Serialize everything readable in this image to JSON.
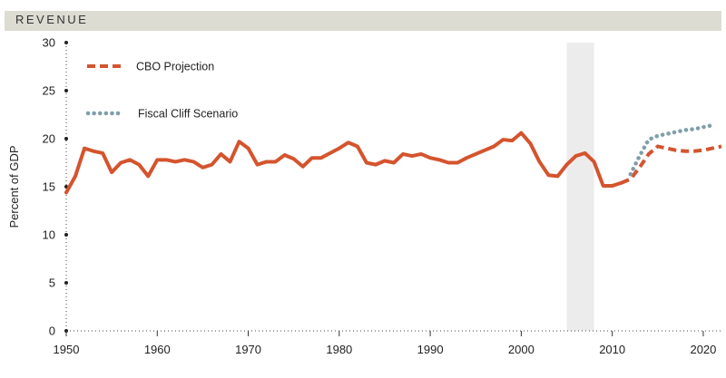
{
  "header": {
    "title": "REVENUE"
  },
  "chart_data": {
    "type": "line",
    "title": "REVENUE",
    "xlabel": "",
    "ylabel": "Percent of GDP",
    "xlim": [
      1950,
      2022
    ],
    "ylim": [
      0,
      30
    ],
    "x_ticks": [
      1950,
      1960,
      1970,
      1980,
      1990,
      2000,
      2010,
      2020
    ],
    "y_ticks": [
      0,
      5,
      10,
      15,
      20,
      25,
      30
    ],
    "grid": false,
    "legend_position": "top-left",
    "shaded_region": {
      "x_start": 2005,
      "x_end": 2008,
      "color": "#ececec"
    },
    "series": [
      {
        "name": "CBO Projection",
        "style": "dashed",
        "color": "#d4542e",
        "points": [
          [
            1950,
            14.4
          ],
          [
            1951,
            16.1
          ],
          [
            1952,
            19.0
          ],
          [
            1953,
            18.7
          ],
          [
            1954,
            18.5
          ],
          [
            1955,
            16.5
          ],
          [
            1956,
            17.5
          ],
          [
            1957,
            17.8
          ],
          [
            1958,
            17.3
          ],
          [
            1959,
            16.1
          ],
          [
            1960,
            17.8
          ],
          [
            1961,
            17.8
          ],
          [
            1962,
            17.6
          ],
          [
            1963,
            17.8
          ],
          [
            1964,
            17.6
          ],
          [
            1965,
            17.0
          ],
          [
            1966,
            17.3
          ],
          [
            1967,
            18.4
          ],
          [
            1968,
            17.6
          ],
          [
            1969,
            19.7
          ],
          [
            1970,
            19.0
          ],
          [
            1971,
            17.3
          ],
          [
            1972,
            17.6
          ],
          [
            1973,
            17.6
          ],
          [
            1974,
            18.3
          ],
          [
            1975,
            17.9
          ],
          [
            1976,
            17.1
          ],
          [
            1977,
            18.0
          ],
          [
            1978,
            18.0
          ],
          [
            1979,
            18.5
          ],
          [
            1980,
            19.0
          ],
          [
            1981,
            19.6
          ],
          [
            1982,
            19.2
          ],
          [
            1983,
            17.5
          ],
          [
            1984,
            17.3
          ],
          [
            1985,
            17.7
          ],
          [
            1986,
            17.5
          ],
          [
            1987,
            18.4
          ],
          [
            1988,
            18.2
          ],
          [
            1989,
            18.4
          ],
          [
            1990,
            18.0
          ],
          [
            1991,
            17.8
          ],
          [
            1992,
            17.5
          ],
          [
            1993,
            17.5
          ],
          [
            1994,
            18.0
          ],
          [
            1995,
            18.4
          ],
          [
            1996,
            18.8
          ],
          [
            1997,
            19.2
          ],
          [
            1998,
            19.9
          ],
          [
            1999,
            19.8
          ],
          [
            2000,
            20.6
          ],
          [
            2001,
            19.5
          ],
          [
            2002,
            17.6
          ],
          [
            2003,
            16.2
          ],
          [
            2004,
            16.1
          ],
          [
            2005,
            17.3
          ],
          [
            2006,
            18.2
          ],
          [
            2007,
            18.5
          ],
          [
            2008,
            17.6
          ],
          [
            2009,
            15.1
          ],
          [
            2010,
            15.1
          ],
          [
            2011,
            15.4
          ],
          [
            2012,
            15.8
          ],
          [
            2013,
            17.0
          ],
          [
            2014,
            18.4
          ],
          [
            2015,
            19.2
          ],
          [
            2016,
            19.0
          ],
          [
            2017,
            18.8
          ],
          [
            2018,
            18.7
          ],
          [
            2019,
            18.7
          ],
          [
            2020,
            18.8
          ],
          [
            2021,
            19.0
          ],
          [
            2022,
            19.2
          ]
        ]
      },
      {
        "name": "Fiscal Cliff Scenario",
        "style": "dotted",
        "color": "#7f9ea9",
        "points": [
          [
            2012,
            16.3
          ],
          [
            2013,
            18.2
          ],
          [
            2014,
            19.9
          ],
          [
            2015,
            20.3
          ],
          [
            2016,
            20.5
          ],
          [
            2017,
            20.7
          ],
          [
            2018,
            20.9
          ],
          [
            2019,
            21.0
          ],
          [
            2020,
            21.2
          ],
          [
            2021,
            21.4
          ]
        ]
      }
    ]
  }
}
